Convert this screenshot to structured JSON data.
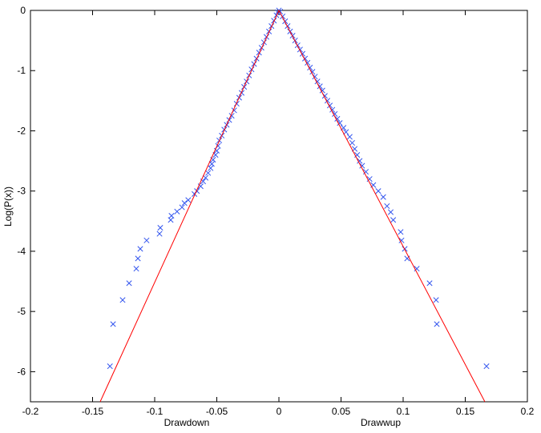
{
  "chart_data": {
    "type": "scatter",
    "ylabel": "Log(P(x))",
    "xlabel_left": "Drawdown",
    "xlabel_right": "Drawwup",
    "xlim": [
      -0.2,
      0.2
    ],
    "ylim": [
      -6.5,
      0
    ],
    "xticks": [
      -0.2,
      -0.15,
      -0.1,
      -0.05,
      0,
      0.05,
      0.1,
      0.15,
      0.2
    ],
    "yticks": [
      0,
      -1,
      -2,
      -3,
      -4,
      -5,
      -6
    ],
    "series": [
      {
        "type": "scatter",
        "color": "#3355ee",
        "x": [
          -0.136,
          -0.1335,
          -0.1258,
          -0.1206,
          -0.1148,
          -0.1135,
          -0.1116,
          -0.1065,
          -0.0961,
          -0.0955,
          -0.0871,
          -0.0865,
          -0.082,
          -0.078,
          -0.076,
          -0.073,
          -0.068,
          -0.066,
          -0.063,
          -0.061,
          -0.059,
          -0.057,
          -0.055,
          -0.054,
          -0.053,
          -0.051,
          -0.05,
          -0.049,
          -0.048,
          -0.046,
          -0.044,
          -0.042,
          -0.04,
          -0.038,
          -0.036,
          -0.034,
          -0.032,
          -0.03,
          -0.028,
          -0.026,
          -0.024,
          -0.022,
          -0.02,
          -0.018,
          -0.016,
          -0.014,
          -0.012,
          -0.01,
          -0.008,
          -0.006,
          -0.004,
          -0.002,
          -0.001,
          0,
          0.001,
          0.003,
          0.005,
          0.007,
          0.009,
          0.011,
          0.013,
          0.015,
          0.017,
          0.019,
          0.021,
          0.023,
          0.025,
          0.027,
          0.029,
          0.031,
          0.033,
          0.035,
          0.037,
          0.039,
          0.041,
          0.043,
          0.045,
          0.047,
          0.049,
          0.052,
          0.054,
          0.057,
          0.059,
          0.061,
          0.063,
          0.065,
          0.067,
          0.07,
          0.073,
          0.076,
          0.08,
          0.084,
          0.087,
          0.09,
          0.092,
          0.098,
          0.0987,
          0.1013,
          0.1032,
          0.111,
          0.1213,
          0.1265,
          0.1271,
          0.1671
        ],
        "values": [
          -5.91,
          -5.21,
          -4.81,
          -4.53,
          -4.29,
          -4.12,
          -3.96,
          -3.82,
          -3.71,
          -3.61,
          -3.48,
          -3.41,
          -3.34,
          -3.27,
          -3.2,
          -3.15,
          -3.05,
          -3.0,
          -2.92,
          -2.84,
          -2.78,
          -2.7,
          -2.62,
          -2.55,
          -2.48,
          -2.4,
          -2.33,
          -2.25,
          -2.16,
          -2.08,
          -1.98,
          -1.9,
          -1.82,
          -1.75,
          -1.66,
          -1.55,
          -1.45,
          -1.37,
          -1.27,
          -1.18,
          -1.08,
          -0.98,
          -0.89,
          -0.8,
          -0.7,
          -0.62,
          -0.53,
          -0.44,
          -0.35,
          -0.26,
          -0.17,
          -0.08,
          -0.03,
          0,
          -0.02,
          -0.1,
          -0.18,
          -0.26,
          -0.35,
          -0.42,
          -0.5,
          -0.58,
          -0.65,
          -0.72,
          -0.8,
          -0.87,
          -0.95,
          -1.02,
          -1.1,
          -1.18,
          -1.26,
          -1.33,
          -1.42,
          -1.5,
          -1.58,
          -1.65,
          -1.72,
          -1.8,
          -1.87,
          -1.95,
          -2.02,
          -2.1,
          -2.2,
          -2.3,
          -2.4,
          -2.5,
          -2.58,
          -2.68,
          -2.8,
          -2.9,
          -3.0,
          -3.1,
          -3.25,
          -3.35,
          -3.48,
          -3.68,
          -3.82,
          -3.96,
          -4.12,
          -4.29,
          -4.53,
          -4.81,
          -5.21,
          -5.91
        ]
      },
      {
        "type": "line",
        "color": "#ff0000",
        "x": [
          -0.1439,
          0,
          0.1658
        ],
        "values": [
          -6.5,
          0,
          -6.5
        ]
      }
    ]
  }
}
